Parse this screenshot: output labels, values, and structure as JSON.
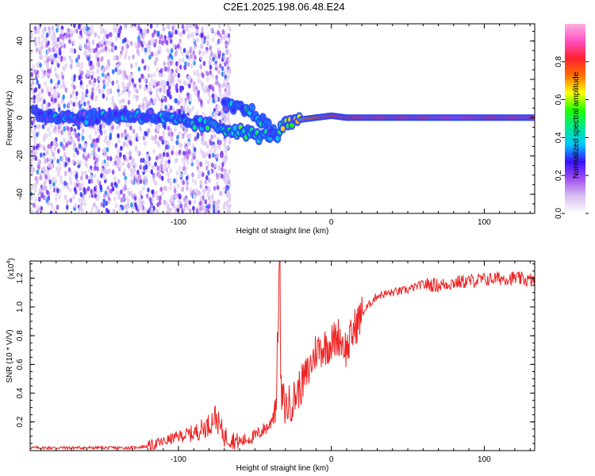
{
  "title": "C2E1.2025.198.06.48.E24",
  "colors": {
    "snr_line": "#ee2222",
    "colorbar": [
      "#ffffff",
      "#d8c0f0",
      "#a050f0",
      "#3a10ff",
      "#00c8ff",
      "#00e890",
      "#22ff00",
      "#ffff00",
      "#ff7000",
      "#ff2030",
      "#ff50c0",
      "#ffb0e0"
    ]
  },
  "chart_data": [
    {
      "type": "heatmap",
      "xlabel": "Height of straight line (km)",
      "ylabel": "Frequency (Hz)",
      "xlim": [
        -197,
        133
      ],
      "ylim": [
        -50,
        49
      ],
      "x_ticks": [
        -100,
        0,
        100
      ],
      "x_tick_labels": [
        "-100",
        "0",
        "100"
      ],
      "y_ticks": [
        -40,
        -20,
        0,
        20,
        40
      ],
      "y_tick_labels": [
        "-40",
        "-20",
        "0",
        "20",
        "40"
      ],
      "grid": false,
      "colorbar": {
        "label": "Normalized spectral amplitude",
        "range": [
          0,
          1
        ],
        "ticks": [
          0.0,
          0.2,
          0.4,
          0.6,
          0.8
        ],
        "tick_labels": [
          "0.0",
          "0.2",
          "0.4",
          "0.6",
          "0.8"
        ]
      },
      "series": [
        {
          "x": [
            -195,
            -180,
            -160,
            -140,
            -120,
            -100,
            -80,
            -60,
            -45,
            -38,
            -30,
            -20,
            -10,
            0,
            10,
            20,
            40,
            60,
            80,
            100,
            120,
            133
          ],
          "y": [
            2,
            1,
            0,
            1,
            1,
            -2,
            -4,
            -7,
            -10,
            -8,
            -4,
            -1,
            0,
            1,
            0,
            0,
            0,
            0,
            0,
            0,
            0,
            0
          ],
          "amplitude": [
            0.25,
            0.3,
            0.3,
            0.35,
            0.3,
            0.35,
            0.4,
            0.45,
            0.4,
            0.35,
            0.6,
            0.7,
            0.75,
            0.8,
            0.8,
            0.85,
            0.85,
            0.85,
            0.9,
            0.85,
            0.85,
            0.85
          ]
        },
        {
          "x": [
            -70,
            -62,
            -55,
            -50,
            -45,
            -40,
            -35
          ],
          "y": [
            6,
            5,
            4,
            2,
            -2,
            -6,
            -11
          ],
          "amplitude": [
            0.3,
            0.35,
            0.4,
            0.4,
            0.35,
            0.3,
            0.3
          ]
        }
      ]
    },
    {
      "type": "line",
      "xlabel": "Height of straight line (km)",
      "ylabel": "SNR (10 * V/V)",
      "multiplier": "(x10^4)",
      "multiplier_base": "(x10",
      "multiplier_exp": "4",
      "xlim": [
        -197,
        133
      ],
      "ylim": [
        0.0,
        1.32
      ],
      "x_ticks": [
        -100,
        0,
        100
      ],
      "x_tick_labels": [
        "-100",
        "0",
        "100"
      ],
      "y_ticks": [
        0.2,
        0.4,
        0.6,
        0.8,
        1.0,
        1.2
      ],
      "y_tick_labels": [
        "0.2",
        "0.4",
        "0.6",
        "0.8",
        "1.0",
        "1.2"
      ],
      "grid": false,
      "series": [
        {
          "x": [
            -197,
            -180,
            -160,
            -140,
            -130,
            -120,
            -110,
            -100,
            -90,
            -80,
            -76,
            -70,
            -60,
            -50,
            -40,
            -36,
            -34,
            -33,
            -30,
            -25,
            -20,
            -15,
            -10,
            -5,
            0,
            5,
            10,
            15,
            20,
            25,
            30,
            40,
            50,
            60,
            70,
            80,
            90,
            100,
            110,
            120,
            133
          ],
          "y": [
            0.02,
            0.02,
            0.02,
            0.02,
            0.02,
            0.03,
            0.06,
            0.1,
            0.12,
            0.18,
            0.24,
            0.1,
            0.06,
            0.1,
            0.18,
            0.35,
            1.32,
            0.4,
            0.3,
            0.35,
            0.45,
            0.55,
            0.7,
            0.72,
            0.75,
            0.8,
            0.7,
            0.85,
            0.95,
            1.02,
            1.08,
            1.1,
            1.12,
            1.16,
            1.15,
            1.17,
            1.18,
            1.19,
            1.2,
            1.2,
            1.18
          ]
        }
      ]
    }
  ]
}
